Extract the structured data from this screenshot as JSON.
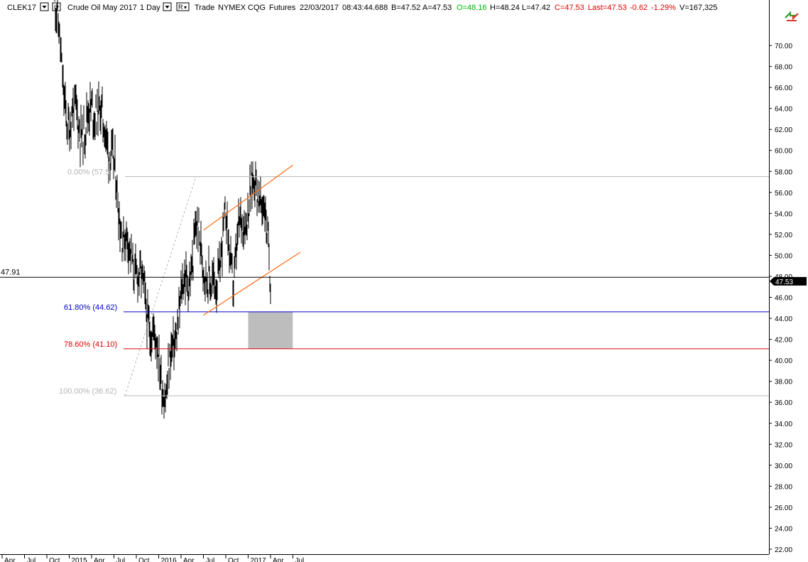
{
  "header": {
    "symbol": "CLEK17",
    "description": "Crude Oil May 2017",
    "interval": "1 Day",
    "mode_icon": "R",
    "quote_type": "Trade",
    "exchange": "NYMEX",
    "feed": "CQG",
    "category": "Futures",
    "date": "22/03/2017",
    "time": "08:43:44.688",
    "bid": "B=47.52",
    "ask": "A=47.53",
    "open": "O=48.16",
    "high": "H=48.24",
    "low": "L=47.42",
    "close": "C=47.53",
    "last": "Last=47.53",
    "change": "-0.62",
    "change_pct": "-1.29%",
    "volume": "V=167,325"
  },
  "colors": {
    "open_green": "#00b400",
    "down_red": "#e00000",
    "fib_618": "#0000cc",
    "fib_786": "#e00000",
    "fib_gray": "#b4b4b4",
    "channel": "#ff6a13",
    "zone": "#bdbdbd",
    "level_line": "#000000"
  },
  "level_left_label": "47.91",
  "toolbar_icon": "arrows-cycle-icon",
  "chart_data": {
    "type": "candlestick",
    "ylim": [
      21.5,
      75.5
    ],
    "y_ticks": [
      "70.00",
      "68.00",
      "66.00",
      "64.00",
      "62.00",
      "60.00",
      "58.00",
      "56.00",
      "54.00",
      "52.00",
      "50.00",
      "48.00",
      "46.00",
      "44.00",
      "42.00",
      "40.00",
      "38.00",
      "36.00",
      "34.00",
      "32.00",
      "30.00",
      "28.00",
      "26.00",
      "24.00",
      "22.00"
    ],
    "x_ticks": [
      "Apr",
      "Jul",
      "Oct",
      "2015",
      "Apr",
      "Jul",
      "Oct",
      "2016",
      "Apr",
      "Jul",
      "Oct",
      "2017",
      "Apr",
      "Jul"
    ],
    "last_price": "47.53",
    "horizontal_level": 47.91,
    "fib_levels": [
      {
        "label": "0.00% (57.5",
        "value": 57.5
      },
      {
        "label": "61.80% (44.62)",
        "value": 44.62
      },
      {
        "label": "78.60% (41.10)",
        "value": 41.1
      },
      {
        "label": "100.00% (36.62)",
        "value": 36.62
      }
    ],
    "target_zone": {
      "from_date": "2016-12",
      "to_date": "2017-06",
      "low": 41.1,
      "high": 44.62
    },
    "channel": {
      "upper": [
        [
          "2016-06",
          52.4
        ],
        [
          "2017-06",
          58.6
        ]
      ],
      "lower": [
        [
          "2016-06",
          44.3
        ],
        [
          "2017-07",
          50.3
        ]
      ]
    },
    "price_path": [
      [
        "2014-10",
        75
      ],
      [
        "2014-11",
        67
      ],
      [
        "2014-12",
        62
      ],
      [
        "2015-01",
        64
      ],
      [
        "2015-02",
        61
      ],
      [
        "2015-03",
        65
      ],
      [
        "2015-04",
        63
      ],
      [
        "2015-05",
        62
      ],
      [
        "2015-06",
        57.5
      ],
      [
        "2015-07",
        53
      ],
      [
        "2015-08",
        50
      ],
      [
        "2015-09",
        49
      ],
      [
        "2015-10",
        46
      ],
      [
        "2015-11",
        43
      ],
      [
        "2015-12",
        40
      ],
      [
        "2016-01",
        36.6
      ],
      [
        "2016-02",
        42
      ],
      [
        "2016-03",
        46
      ],
      [
        "2016-04",
        48
      ],
      [
        "2016-05",
        52
      ],
      [
        "2016-06",
        50
      ],
      [
        "2016-07",
        46
      ],
      [
        "2016-08",
        49
      ],
      [
        "2016-09",
        53
      ],
      [
        "2016-10",
        48
      ],
      [
        "2016-11",
        53
      ],
      [
        "2016-12",
        55
      ],
      [
        "2017-01",
        57
      ],
      [
        "2017-02",
        55
      ],
      [
        "2017-03",
        47.5
      ]
    ]
  }
}
